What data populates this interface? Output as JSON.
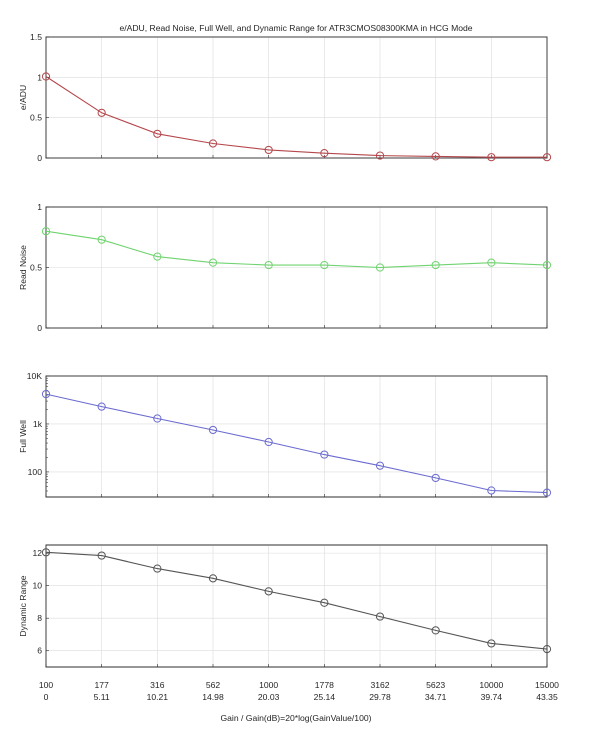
{
  "title": "e/ADU, Read Noise, Full Well, and Dynamic Range for ATR3CMOS08300KMA in HCG Mode",
  "xlabel": "Gain / Gain(dB)=20*log(GainValue/100)",
  "x_tick_labels": {
    "gain": [
      "100",
      "177",
      "316",
      "562",
      "1000",
      "1778",
      "3162",
      "5623",
      "10000",
      "15000"
    ],
    "gain_db": [
      "0",
      "5.11",
      "10.21",
      "14.98",
      "20.03",
      "25.14",
      "29.78",
      "34.71",
      "39.74",
      "43.35"
    ]
  },
  "chart_data": [
    {
      "type": "line",
      "ylabel": "e/ADU",
      "color": "#b5474c",
      "marker": "circle",
      "grid": true,
      "x": [
        100,
        177,
        316,
        562,
        1000,
        1778,
        3162,
        5623,
        10000,
        15000
      ],
      "values": [
        1.01,
        0.56,
        0.3,
        0.18,
        0.1,
        0.06,
        0.03,
        0.02,
        0.01,
        0.01
      ],
      "ylim": [
        0,
        1.5
      ],
      "yticks": [
        0,
        0.5,
        1,
        1.5
      ],
      "ytick_labels": [
        "0",
        "0.5",
        "1",
        "1.5"
      ],
      "yscale": "linear"
    },
    {
      "type": "line",
      "ylabel": "Read Noise",
      "color": "#6fd36f",
      "marker": "circle",
      "grid": true,
      "x": [
        100,
        177,
        316,
        562,
        1000,
        1778,
        3162,
        5623,
        10000,
        15000
      ],
      "values": [
        0.8,
        0.73,
        0.59,
        0.54,
        0.52,
        0.52,
        0.5,
        0.52,
        0.54,
        0.52
      ],
      "ylim": [
        0,
        1
      ],
      "yticks": [
        0,
        0.5,
        1
      ],
      "ytick_labels": [
        "0",
        "0.5",
        "1"
      ],
      "yscale": "linear"
    },
    {
      "type": "line",
      "ylabel": "Full Well",
      "color": "#6b6bd0",
      "marker": "circle",
      "grid": true,
      "x": [
        100,
        177,
        316,
        562,
        1000,
        1778,
        3162,
        5623,
        10000,
        15000
      ],
      "values": [
        4200,
        2300,
        1300,
        750,
        420,
        230,
        135,
        75,
        41,
        37
      ],
      "ylim": [
        30,
        10000
      ],
      "yticks": [
        100,
        1000,
        10000
      ],
      "ytick_labels": [
        "100",
        "1k",
        "10K"
      ],
      "yscale": "log"
    },
    {
      "type": "line",
      "ylabel": "Dynamic Range",
      "color": "#555555",
      "marker": "circle",
      "grid": true,
      "x": [
        100,
        177,
        316,
        562,
        1000,
        1778,
        3162,
        5623,
        10000,
        15000
      ],
      "values": [
        12.05,
        11.85,
        11.05,
        10.45,
        9.65,
        8.95,
        8.1,
        7.25,
        6.45,
        6.1
      ],
      "ylim": [
        5,
        12.5
      ],
      "yticks": [
        6,
        8,
        10,
        12
      ],
      "ytick_labels": [
        "6",
        "8",
        "10",
        "12"
      ],
      "yscale": "linear"
    }
  ]
}
